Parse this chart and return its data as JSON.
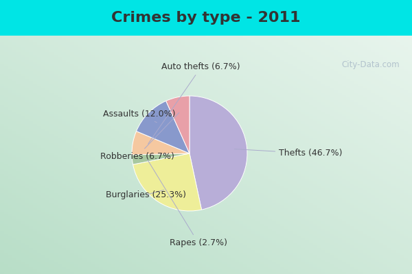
{
  "title": "Crimes by type - 2011",
  "slices": [
    {
      "label": "Thefts (46.7%)",
      "value": 46.7,
      "color": "#b8aed8"
    },
    {
      "label": "Burglaries (25.3%)",
      "value": 25.3,
      "color": "#eeee99"
    },
    {
      "label": "Rapes (2.7%)",
      "value": 2.7,
      "color": "#a8c8a0"
    },
    {
      "label": "Auto thefts (6.7%)",
      "value": 6.7,
      "color": "#f5c8a0"
    },
    {
      "label": "Assaults (12.0%)",
      "value": 12.0,
      "color": "#8899cc"
    },
    {
      "label": "Robberies (6.7%)",
      "value": 6.7,
      "color": "#e8a0a8"
    }
  ],
  "startangle": 90,
  "counterclock": false,
  "bg_cyan": "#00e5e5",
  "bg_inner": "#cce8dc",
  "title_color": "#333333",
  "title_fontsize": 16,
  "label_fontsize": 9,
  "label_color": "#333333",
  "line_color": "#aaaacc",
  "watermark": "City-Data.com",
  "watermark_color": "#aabbc8"
}
